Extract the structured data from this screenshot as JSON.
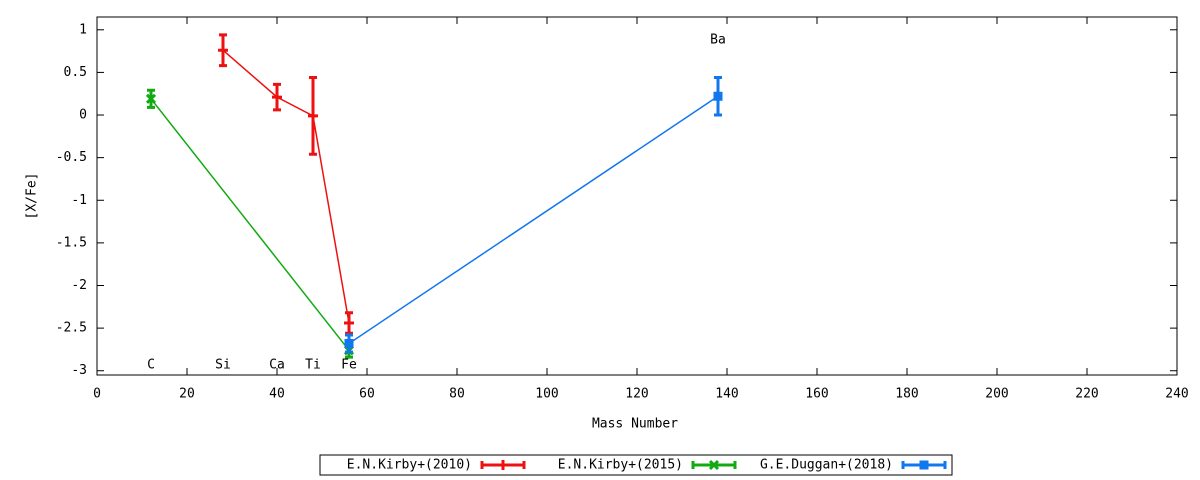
{
  "chart_data": {
    "type": "line",
    "xlabel": "Mass Number",
    "ylabel": "[X/Fe]",
    "xlim": [
      0,
      240
    ],
    "xticks": [
      0,
      20,
      40,
      60,
      80,
      100,
      120,
      140,
      160,
      180,
      200,
      220,
      240
    ],
    "ylim": [
      -3.05,
      1.15
    ],
    "yticks": [
      1,
      0.5,
      0,
      -0.5,
      -1,
      -1.5,
      -2,
      -2.5,
      -3
    ],
    "series": [
      {
        "name": "E.N.Kirby+(2010)",
        "color": "#ee1111",
        "marker": "plus",
        "x": [
          28,
          40,
          48,
          56
        ],
        "values": [
          0.76,
          0.21,
          -0.01,
          -2.44
        ],
        "errors": [
          0.18,
          0.15,
          0.45,
          0.12
        ]
      },
      {
        "name": "E.N.Kirby+(2015)",
        "color": "#11aa11",
        "marker": "cross",
        "x": [
          12,
          56
        ],
        "values": [
          0.19,
          -2.76
        ],
        "errors": [
          0.1,
          0.08
        ]
      },
      {
        "name": "G.E.Duggan+(2018)",
        "color": "#1177ee",
        "marker": "square",
        "x": [
          56,
          138
        ],
        "values": [
          -2.68,
          0.22
        ],
        "errors": [
          0.1,
          0.22
        ]
      }
    ],
    "annotations": [
      {
        "text": "C",
        "x": 12,
        "y": -2.93
      },
      {
        "text": "Si",
        "x": 28,
        "y": -2.93
      },
      {
        "text": "Ca",
        "x": 40,
        "y": -2.93
      },
      {
        "text": "Ti",
        "x": 48,
        "y": -2.93
      },
      {
        "text": "Fe",
        "x": 56,
        "y": -2.93
      },
      {
        "text": "Ba",
        "x": 138,
        "y": 0.88
      }
    ],
    "legend": "bottom"
  }
}
